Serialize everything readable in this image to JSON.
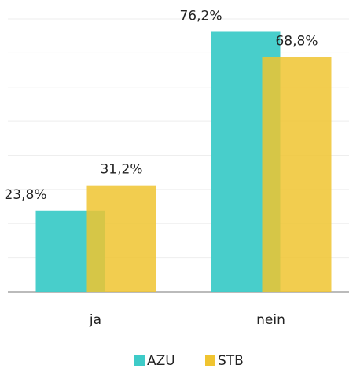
{
  "chart_data": {
    "type": "bar",
    "categories": [
      "ja",
      "nein"
    ],
    "series": [
      {
        "name": "AZU",
        "color": "#3ecbc8",
        "values": [
          23.8,
          76.2
        ],
        "value_labels": [
          "23,8%",
          "76,2%"
        ]
      },
      {
        "name": "STB",
        "color": "#f0c430",
        "values": [
          31.2,
          68.8
        ],
        "value_labels": [
          "31,2%",
          "68,8%"
        ]
      }
    ],
    "ylim": [
      0,
      80
    ],
    "yticks": [
      0,
      10,
      20,
      30,
      40,
      50,
      60,
      70,
      80
    ],
    "grid": true,
    "legend": "bottom"
  }
}
